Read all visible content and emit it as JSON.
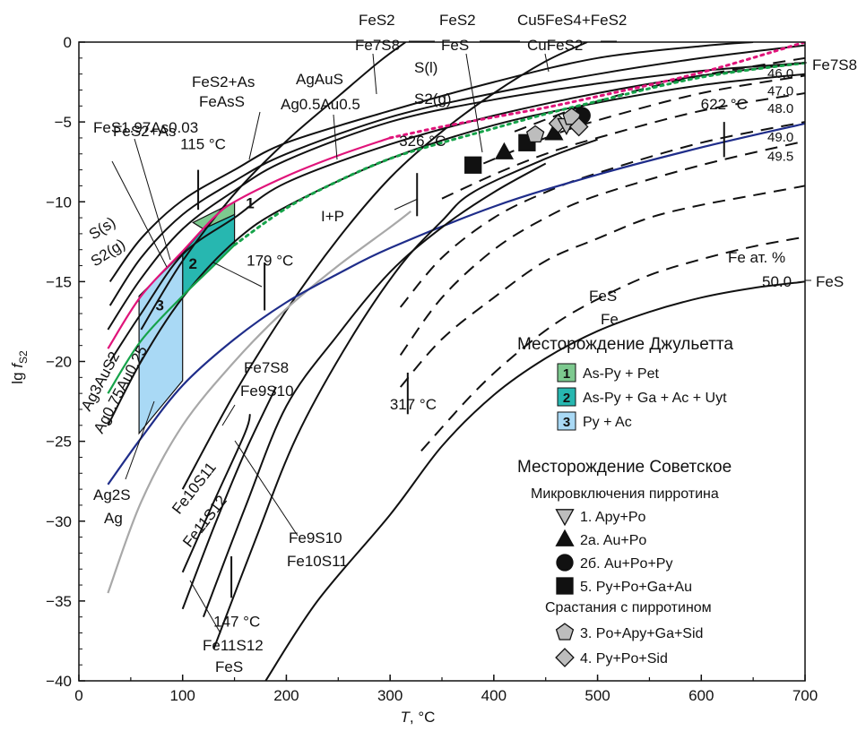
{
  "chart_data": {
    "type": "line",
    "xlabel_var": "T",
    "xlabel_unit": ", °C",
    "ylabel_prefix": "lg ",
    "ylabel_var": "f",
    "ylabel_sub": "S2",
    "xlim": [
      0,
      700
    ],
    "ylim": [
      -40,
      0
    ],
    "xticks": [
      0,
      100,
      200,
      300,
      400,
      500,
      600,
      700
    ],
    "yticks": [
      0,
      -5,
      -10,
      -15,
      -20,
      -25,
      -30,
      -35,
      -40
    ],
    "grid": false,
    "colors": {
      "black": "#111111",
      "magenta": "#e0147a",
      "green": "#16a34a",
      "navy": "#1f2d8a",
      "gray": "#a8a8a8",
      "region1": "#7dc98f",
      "region2": "#27b7b0",
      "region3": "#a9d9f5"
    },
    "solid_curves": [
      {
        "name": "S(s)/S2(g)",
        "color": "black",
        "points": [
          [
            30,
            -15
          ],
          [
            60,
            -12.3
          ],
          [
            100,
            -9.9
          ],
          [
            150,
            -8.0
          ],
          [
            200,
            -6.3
          ],
          [
            300,
            -4.3
          ],
          [
            400,
            -2.5
          ],
          [
            500,
            -1.0
          ],
          [
            600,
            -0.25
          ],
          [
            650,
            0
          ]
        ]
      },
      {
        "name": "S(l)/S2(g)",
        "color": "black",
        "points": [
          [
            30,
            -16.5
          ],
          [
            60,
            -13.5
          ],
          [
            100,
            -10.8
          ],
          [
            150,
            -8.7
          ],
          [
            200,
            -7.0
          ],
          [
            300,
            -4.7
          ],
          [
            400,
            -3.2
          ],
          [
            500,
            -2.0
          ],
          [
            600,
            -1.0
          ],
          [
            700,
            -0.2
          ]
        ]
      },
      {
        "name": "FeS2+As/FeAsS",
        "color": "black",
        "points": [
          [
            28,
            -18
          ],
          [
            60,
            -14.8
          ],
          [
            100,
            -11.7
          ],
          [
            150,
            -9.3
          ],
          [
            200,
            -7.4
          ],
          [
            300,
            -5.0
          ],
          [
            400,
            -3.6
          ],
          [
            500,
            -2.6
          ],
          [
            600,
            -1.8
          ],
          [
            700,
            -1.3
          ]
        ]
      },
      {
        "name": "FeS2/Fe7S8",
        "color": "black",
        "points": [
          [
            60,
            -18
          ],
          [
            100,
            -13.7
          ],
          [
            150,
            -9.5
          ],
          [
            200,
            -6.2
          ],
          [
            250,
            -3.4
          ],
          [
            290,
            -1.2
          ],
          [
            315,
            0
          ]
        ]
      },
      {
        "name": "FeS2/FeS",
        "color": "black",
        "points": [
          [
            100,
            -28
          ],
          [
            150,
            -22
          ],
          [
            200,
            -16.8
          ],
          [
            250,
            -12.3
          ],
          [
            300,
            -8.5
          ],
          [
            350,
            -5.6
          ],
          [
            400,
            -3.2
          ],
          [
            450,
            -1.2
          ],
          [
            490,
            0
          ]
        ]
      },
      {
        "name": "Cu5FeS4+FeS2/CuFeS2",
        "color": "black",
        "points": [
          [
            30,
            -20
          ],
          [
            60,
            -17
          ],
          [
            100,
            -13.3
          ],
          [
            150,
            -11.0
          ],
          [
            200,
            -8.8
          ],
          [
            300,
            -6.4
          ],
          [
            400,
            -4.6
          ],
          [
            500,
            -3.2
          ],
          [
            600,
            -2.1
          ],
          [
            700,
            -1.3
          ]
        ]
      },
      {
        "name": "FeS2+As/FeS1.97As0.03",
        "color": "black",
        "points": [
          [
            28,
            -24
          ],
          [
            60,
            -20
          ],
          [
            100,
            -16
          ],
          [
            150,
            -12.5
          ],
          [
            200,
            -10.3
          ],
          [
            300,
            -7.3
          ],
          [
            400,
            -5.2
          ],
          [
            500,
            -3.8
          ],
          [
            600,
            -2.7
          ],
          [
            700,
            -2.0
          ]
        ]
      },
      {
        "name": "Ag2S/Ag gray",
        "color": "gray",
        "points": [
          [
            28,
            -34.5
          ],
          [
            60,
            -28.8
          ],
          [
            100,
            -24.0
          ],
          [
            150,
            -20.0
          ],
          [
            200,
            -16.7
          ],
          [
            250,
            -14.0
          ],
          [
            300,
            -11.6
          ],
          [
            320,
            -10.6
          ]
        ]
      },
      {
        "name": "Ag2S/Ag blue",
        "color": "navy",
        "points": [
          [
            28,
            -27.7
          ],
          [
            60,
            -24.8
          ],
          [
            100,
            -21.5
          ],
          [
            150,
            -18.6
          ],
          [
            200,
            -16.3
          ],
          [
            250,
            -14.5
          ],
          [
            300,
            -12.9
          ],
          [
            400,
            -10.3
          ],
          [
            500,
            -8.3
          ],
          [
            600,
            -6.6
          ],
          [
            700,
            -5.1
          ]
        ]
      },
      {
        "name": "AgAuS/Ag0.5Au0.5",
        "color": "magenta",
        "points": [
          [
            28,
            -19.2
          ],
          [
            60,
            -15.9
          ],
          [
            100,
            -13.1
          ],
          [
            130,
            -11.0
          ],
          [
            150,
            -10.0
          ],
          [
            200,
            -8.4
          ],
          [
            250,
            -7.1
          ],
          [
            300,
            -6.0
          ]
        ]
      },
      {
        "name": "Ag3AuS2/Ag0.75Au0.25",
        "color": "green",
        "points": [
          [
            28,
            -22
          ],
          [
            60,
            -18.7
          ],
          [
            100,
            -15.9
          ],
          [
            130,
            -14.0
          ],
          [
            150,
            -12.7
          ]
        ]
      },
      {
        "name": "I+P green dotted",
        "color": "green",
        "dash": "3 5",
        "points": [
          [
            150,
            -12.7
          ],
          [
            200,
            -10.4
          ],
          [
            250,
            -8.7
          ],
          [
            300,
            -7.3
          ],
          [
            350,
            -6.3
          ],
          [
            400,
            -5.4
          ],
          [
            450,
            -4.5
          ],
          [
            500,
            -3.7
          ],
          [
            600,
            -2.2
          ],
          [
            700,
            -1.3
          ]
        ]
      },
      {
        "name": "magenta dotted",
        "color": "magenta",
        "dash": "3 5",
        "points": [
          [
            300,
            -6.0
          ],
          [
            350,
            -5.3
          ],
          [
            400,
            -4.7
          ],
          [
            450,
            -4.1
          ],
          [
            500,
            -3.4
          ],
          [
            600,
            -1.9
          ],
          [
            700,
            0
          ]
        ]
      },
      {
        "name": "Fe7S8/Fe9S10",
        "color": "black",
        "points": [
          [
            100,
            -33.2
          ],
          [
            130,
            -28.8
          ],
          [
            160,
            -24.5
          ],
          [
            165,
            -23.3
          ]
        ]
      },
      {
        "name": "Fe9S10/Fe10S11",
        "color": "black",
        "points": [
          [
            100,
            -35.5
          ],
          [
            130,
            -30.4
          ],
          [
            160,
            -25.7
          ],
          [
            190,
            -21.6
          ]
        ]
      },
      {
        "name": "Fe10S11/Fe11S12",
        "color": "black",
        "points": [
          [
            120,
            -36
          ],
          [
            160,
            -29.2
          ],
          [
            200,
            -22.8
          ],
          [
            250,
            -18.3
          ],
          [
            300,
            -14.4
          ],
          [
            350,
            -11.6
          ],
          [
            400,
            -9.4
          ],
          [
            450,
            -7.6
          ]
        ]
      },
      {
        "name": "Fe11S12/FeS",
        "color": "black",
        "points": [
          [
            130,
            -38
          ],
          [
            170,
            -31.2
          ],
          [
            210,
            -24.7
          ],
          [
            260,
            -18.8
          ],
          [
            310,
            -14.0
          ],
          [
            350,
            -11.2
          ],
          [
            380,
            -9.4
          ],
          [
            450,
            -7.3
          ],
          [
            500,
            -6.1
          ]
        ]
      },
      {
        "name": "FeS/Fe 50.0",
        "color": "black",
        "points": [
          [
            180,
            -40
          ],
          [
            230,
            -35
          ],
          [
            300,
            -29.6
          ],
          [
            350,
            -25.3
          ],
          [
            400,
            -22.1
          ],
          [
            450,
            -19.8
          ],
          [
            500,
            -18.1
          ],
          [
            550,
            -16.9
          ],
          [
            600,
            -16.0
          ],
          [
            650,
            -15.4
          ],
          [
            700,
            -15.0
          ]
        ]
      }
    ],
    "dashed_curves": [
      {
        "label": "46.0",
        "points": [
          [
            420,
            -5.6
          ],
          [
            500,
            -3.7
          ],
          [
            600,
            -2.1
          ],
          [
            700,
            -1.0
          ]
        ]
      },
      {
        "label": "47.0",
        "points": [
          [
            390,
            -7.6
          ],
          [
            450,
            -6.0
          ],
          [
            500,
            -4.9
          ],
          [
            600,
            -3.2
          ],
          [
            700,
            -2.1
          ]
        ]
      },
      {
        "label": "48.0",
        "points": [
          [
            350,
            -9.8
          ],
          [
            400,
            -8.3
          ],
          [
            450,
            -7.0
          ],
          [
            500,
            -6.0
          ],
          [
            600,
            -4.3
          ],
          [
            700,
            -3.2
          ]
        ]
      },
      {
        "label": "49.0",
        "points": [
          [
            310,
            -16.6
          ],
          [
            350,
            -13.5
          ],
          [
            400,
            -11.0
          ],
          [
            450,
            -9.4
          ],
          [
            500,
            -8.2
          ],
          [
            600,
            -6.3
          ],
          [
            700,
            -5.0
          ]
        ]
      },
      {
        "label": "49.5",
        "points": [
          [
            310,
            -19.6
          ],
          [
            350,
            -16.0
          ],
          [
            400,
            -13.0
          ],
          [
            450,
            -11.0
          ],
          [
            500,
            -9.6
          ],
          [
            600,
            -7.7
          ],
          [
            700,
            -6.2
          ]
        ]
      },
      {
        "label": "",
        "points": [
          [
            310,
            -21.6
          ],
          [
            350,
            -18.6
          ],
          [
            400,
            -16.0
          ],
          [
            450,
            -13.7
          ],
          [
            500,
            -12.3
          ],
          [
            550,
            -11.0
          ],
          [
            600,
            -10.2
          ],
          [
            650,
            -9.6
          ],
          [
            700,
            -9.0
          ]
        ]
      },
      {
        "label": "",
        "points": [
          [
            330,
            -25.6
          ],
          [
            380,
            -22.0
          ],
          [
            420,
            -19.6
          ],
          [
            460,
            -17.6
          ],
          [
            500,
            -16.1
          ],
          [
            550,
            -14.6
          ],
          [
            600,
            -13.6
          ],
          [
            650,
            -12.8
          ],
          [
            700,
            -12.2
          ]
        ]
      }
    ],
    "regions": [
      {
        "label": "1",
        "color": "region1",
        "points": [
          [
            110,
            -11.3
          ],
          [
            150,
            -10.0
          ],
          [
            150,
            -10.8
          ],
          [
            120,
            -11.7
          ]
        ]
      },
      {
        "label": "2",
        "color": "region2",
        "points": [
          [
            100,
            -13.2
          ],
          [
            120,
            -11.7
          ],
          [
            150,
            -10.8
          ],
          [
            150,
            -12.7
          ],
          [
            130,
            -14.0
          ],
          [
            100,
            -15.9
          ]
        ]
      },
      {
        "label": "3",
        "color": "region3",
        "points": [
          [
            58,
            -15.9
          ],
          [
            100,
            -13.2
          ],
          [
            100,
            -21.2
          ],
          [
            58,
            -24.5
          ]
        ]
      }
    ],
    "region_labels": [
      {
        "text": "1",
        "x": 165,
        "y": -10.4
      },
      {
        "text": "2",
        "x": 110,
        "y": -14.2
      },
      {
        "text": "3",
        "x": 78,
        "y": -16.8
      }
    ],
    "markers": [
      {
        "shape": "square",
        "x": 380,
        "y": -7.7
      },
      {
        "shape": "triangle",
        "x": 410,
        "y": -6.9
      },
      {
        "shape": "square",
        "x": 432,
        "y": -6.3
      },
      {
        "shape": "pentagon",
        "x": 440,
        "y": -5.8
      },
      {
        "shape": "triangle",
        "x": 458,
        "y": -5.7
      },
      {
        "shape": "diamond",
        "x": 462,
        "y": -5.1
      },
      {
        "shape": "triangle-down",
        "x": 470,
        "y": -5.2
      },
      {
        "shape": "circle",
        "x": 485,
        "y": -4.6
      },
      {
        "shape": "pentagon",
        "x": 475,
        "y": -4.7
      },
      {
        "shape": "diamond",
        "x": 482,
        "y": -5.3
      }
    ],
    "temp_ticks": [
      {
        "label": "115 °C",
        "x": 115
      },
      {
        "label": "179 °C",
        "x": 179
      },
      {
        "label": "326 °C",
        "x": 326
      },
      {
        "label": "622 °C",
        "x": 622
      },
      {
        "label": "317 °C",
        "x": 317
      },
      {
        "label": "147 °C",
        "x": 147
      }
    ],
    "curve_labels": {
      "s_s": "S(s)",
      "s2g_left": "S2(g)",
      "s_l": "S(l)",
      "s2g_right": "S2(g)",
      "fes2_as_top": "FeS2+As",
      "feass": "FeAsS",
      "fes2_as_left": "FeS2+As",
      "fes197": "FeS1.97As0.03",
      "agaus": "AgAuS",
      "ag05au05": "Ag0.5Au0.5",
      "fes2_a": "FeS2",
      "fe7s8_a": "Fe7S8",
      "fes2_b": "FeS2",
      "fes_b": "FeS",
      "cu5fes4": "Cu5FeS4+FeS2",
      "cufes2": "CuFeS2",
      "fe7s8_right": "Fe7S8",
      "ip": "I+P",
      "ag3aus2": "Ag3AuS2",
      "ag075": "Ag0.75Au0.25",
      "ag2s": "Ag2S",
      "ag": "Ag",
      "fe7s8_b": "Fe7S8",
      "fe9s10_b": "Fe9S10",
      "fe10s11_c": "Fe10S11",
      "fe11s12_c": "Fe11S12",
      "fe9s10_d": "Fe9S10",
      "fe10s11_d": "Fe10S11",
      "fe11s12_e": "Fe11S12",
      "fes_e": "FeS",
      "fes_main": "FeS",
      "fe_main": "Fe",
      "fe_at": "Fe ат. %",
      "fes_val": "50.0",
      "fes_right": "FeS"
    },
    "legend": {
      "title1": "Месторождение Джульетта",
      "items1": [
        {
          "num": "1",
          "text": "As-Py + Pet",
          "color": "region1"
        },
        {
          "num": "2",
          "text": "As-Py + Ga + Ac + Uyt",
          "color": "region2"
        },
        {
          "num": "3",
          "text": "Py + Ac",
          "color": "region3"
        }
      ],
      "title2": "Месторождение Советское",
      "subtitle_a": "Микровключения пирротина",
      "items_a": [
        {
          "shape": "triangle-down",
          "text": "1. Apy+Po"
        },
        {
          "shape": "triangle",
          "text": "2a. Au+Po"
        },
        {
          "shape": "circle",
          "text": "2б. Au+Po+Py"
        },
        {
          "shape": "square",
          "text": "5. Py+Po+Ga+Au"
        }
      ],
      "subtitle_b": "Срастания с пирротином",
      "items_b": [
        {
          "shape": "pentagon",
          "text": "3. Po+Apy+Ga+Sid"
        },
        {
          "shape": "diamond",
          "text": "4. Py+Po+Sid"
        }
      ]
    }
  }
}
